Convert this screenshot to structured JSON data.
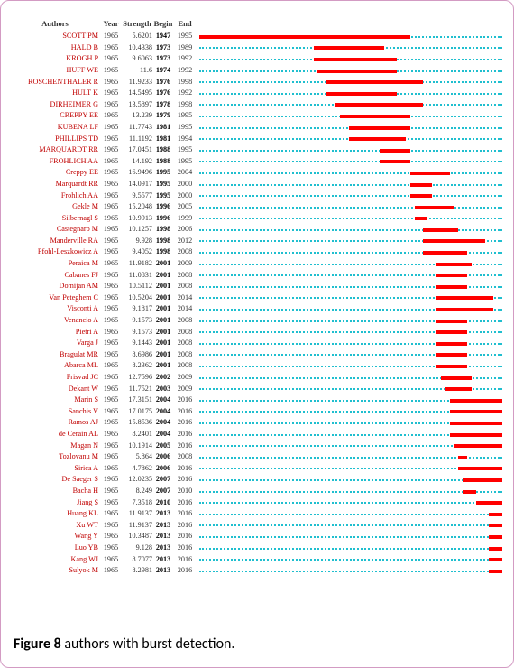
{
  "figure": {
    "label": "Figure 8",
    "text": "authors with burst detection."
  },
  "timeline": {
    "min_year": 1947,
    "max_year": 2016
  },
  "header": {
    "author": "Authors",
    "year": "Year",
    "strength": "Strength",
    "begin": "Begin",
    "end": "End"
  },
  "rows": [
    {
      "author": "SCOTT PM",
      "year": 1965,
      "strength": "5.6201",
      "begin": 1947,
      "end": 1995
    },
    {
      "author": "HALD B",
      "year": 1965,
      "strength": "10.4338",
      "begin": 1973,
      "end": 1989
    },
    {
      "author": "KROGH P",
      "year": 1965,
      "strength": "9.6063",
      "begin": 1973,
      "end": 1992
    },
    {
      "author": "HUFF WE",
      "year": 1965,
      "strength": "11.6",
      "begin": 1974,
      "end": 1992
    },
    {
      "author": "ROSCHENTHALER R",
      "year": 1965,
      "strength": "11.9233",
      "begin": 1976,
      "end": 1998
    },
    {
      "author": "HULT K",
      "year": 1965,
      "strength": "14.5495",
      "begin": 1976,
      "end": 1992
    },
    {
      "author": "DIRHEIMER G",
      "year": 1965,
      "strength": "13.5897",
      "begin": 1978,
      "end": 1998
    },
    {
      "author": "CREPPY EE",
      "year": 1965,
      "strength": "13.239",
      "begin": 1979,
      "end": 1995
    },
    {
      "author": "KUBENA LF",
      "year": 1965,
      "strength": "11.7743",
      "begin": 1981,
      "end": 1995
    },
    {
      "author": "PHILLIPS TD",
      "year": 1965,
      "strength": "11.1192",
      "begin": 1981,
      "end": 1994
    },
    {
      "author": "MARQUARDT RR",
      "year": 1965,
      "strength": "17.0451",
      "begin": 1988,
      "end": 1995
    },
    {
      "author": "FROHLICH AA",
      "year": 1965,
      "strength": "14.192",
      "begin": 1988,
      "end": 1995
    },
    {
      "author": "Creppy EE",
      "year": 1965,
      "strength": "16.9496",
      "begin": 1995,
      "end": 2004
    },
    {
      "author": "Marquardt RR",
      "year": 1965,
      "strength": "14.0917",
      "begin": 1995,
      "end": 2000
    },
    {
      "author": "Frohlich AA",
      "year": 1965,
      "strength": "9.5577",
      "begin": 1995,
      "end": 2000
    },
    {
      "author": "Gekle M",
      "year": 1965,
      "strength": "15.2048",
      "begin": 1996,
      "end": 2005
    },
    {
      "author": "Silbernagl S",
      "year": 1965,
      "strength": "10.9913",
      "begin": 1996,
      "end": 1999
    },
    {
      "author": "Castegnaro M",
      "year": 1965,
      "strength": "10.1257",
      "begin": 1998,
      "end": 2006
    },
    {
      "author": "Manderville RA",
      "year": 1965,
      "strength": "9.928",
      "begin": 1998,
      "end": 2012
    },
    {
      "author": "Pfohl-Leszkowicz A",
      "year": 1965,
      "strength": "9.4052",
      "begin": 1998,
      "end": 2008
    },
    {
      "author": "Peraica M",
      "year": 1965,
      "strength": "11.9182",
      "begin": 2001,
      "end": 2009
    },
    {
      "author": "Cabanes FJ",
      "year": 1965,
      "strength": "11.0831",
      "begin": 2001,
      "end": 2008
    },
    {
      "author": "Domijan AM",
      "year": 1965,
      "strength": "10.5112",
      "begin": 2001,
      "end": 2008
    },
    {
      "author": "Van Peteghem C",
      "year": 1965,
      "strength": "10.5204",
      "begin": 2001,
      "end": 2014
    },
    {
      "author": "Visconti A",
      "year": 1965,
      "strength": "9.1817",
      "begin": 2001,
      "end": 2014
    },
    {
      "author": "Venancio A",
      "year": 1965,
      "strength": "9.1573",
      "begin": 2001,
      "end": 2008
    },
    {
      "author": "Pietri A",
      "year": 1965,
      "strength": "9.1573",
      "begin": 2001,
      "end": 2008
    },
    {
      "author": "Varga J",
      "year": 1965,
      "strength": "9.1443",
      "begin": 2001,
      "end": 2008
    },
    {
      "author": "Bragulat MR",
      "year": 1965,
      "strength": "8.6986",
      "begin": 2001,
      "end": 2008
    },
    {
      "author": "Abarca ML",
      "year": 1965,
      "strength": "8.2362",
      "begin": 2001,
      "end": 2008
    },
    {
      "author": "Frisvad JC",
      "year": 1965,
      "strength": "12.7596",
      "begin": 2002,
      "end": 2009
    },
    {
      "author": "Dekant W",
      "year": 1965,
      "strength": "11.7521",
      "begin": 2003,
      "end": 2009
    },
    {
      "author": "Marin S",
      "year": 1965,
      "strength": "17.3151",
      "begin": 2004,
      "end": 2016
    },
    {
      "author": "Sanchis V",
      "year": 1965,
      "strength": "17.0175",
      "begin": 2004,
      "end": 2016
    },
    {
      "author": "Ramos AJ",
      "year": 1965,
      "strength": "15.8536",
      "begin": 2004,
      "end": 2016
    },
    {
      "author": "de Cerain AL",
      "year": 1965,
      "strength": "8.2401",
      "begin": 2004,
      "end": 2016
    },
    {
      "author": "Magan N",
      "year": 1965,
      "strength": "10.1914",
      "begin": 2005,
      "end": 2016
    },
    {
      "author": "Tozlovanu M",
      "year": 1965,
      "strength": "5.864",
      "begin": 2006,
      "end": 2008
    },
    {
      "author": "Sirica A",
      "year": 1965,
      "strength": "4.7862",
      "begin": 2006,
      "end": 2016
    },
    {
      "author": "De Saeger S",
      "year": 1965,
      "strength": "12.0235",
      "begin": 2007,
      "end": 2016
    },
    {
      "author": "Bacha H",
      "year": 1965,
      "strength": "8.249",
      "begin": 2007,
      "end": 2010
    },
    {
      "author": "Jiang S",
      "year": 1965,
      "strength": "7.3518",
      "begin": 2010,
      "end": 2016
    },
    {
      "author": "Huang KL",
      "year": 1965,
      "strength": "11.9137",
      "begin": 2013,
      "end": 2016
    },
    {
      "author": "Xu WT",
      "year": 1965,
      "strength": "11.9137",
      "begin": 2013,
      "end": 2016
    },
    {
      "author": "Wang Y",
      "year": 1965,
      "strength": "10.3487",
      "begin": 2013,
      "end": 2016
    },
    {
      "author": "Luo YB",
      "year": 1965,
      "strength": "9.128",
      "begin": 2013,
      "end": 2016
    },
    {
      "author": "Kang WJ",
      "year": 1965,
      "strength": "8.7077",
      "begin": 2013,
      "end": 2016
    },
    {
      "author": "Sulyok M",
      "year": 1965,
      "strength": "8.2981",
      "begin": 2013,
      "end": 2016
    }
  ]
}
